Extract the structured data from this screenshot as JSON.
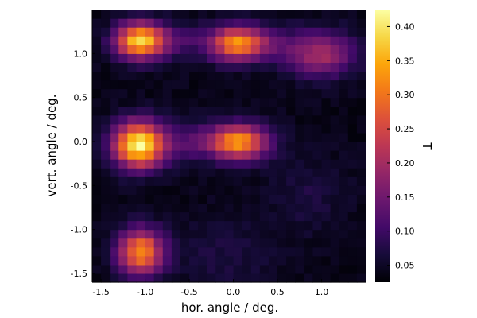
{
  "chart_data": {
    "type": "heatmap",
    "title": "",
    "xlabel": "hor. angle / deg.",
    "ylabel": "vert. angle / deg.",
    "colorbar_label": "T",
    "colormap": "inferno",
    "xlim": [
      -1.6,
      1.5
    ],
    "ylim": [
      -1.6,
      1.5
    ],
    "zlim": [
      0.025,
      0.425
    ],
    "x_ticks": [
      -1.5,
      -1.0,
      -0.5,
      0.0,
      0.5,
      1.0
    ],
    "x_tick_labels": [
      "-1.5",
      "-1.0",
      "-0.5",
      "0.0",
      "0.5",
      "1.0"
    ],
    "y_ticks": [
      -1.5,
      -1.0,
      -0.5,
      0.0,
      0.5,
      1.0
    ],
    "y_tick_labels": [
      "-1.5",
      "-1.0",
      "-0.5",
      "0.0",
      "0.5",
      "1.0"
    ],
    "colorbar_ticks": [
      0.05,
      0.1,
      0.15,
      0.2,
      0.25,
      0.3,
      0.35,
      0.4
    ],
    "colorbar_tick_labels": [
      "0.05",
      "0.10",
      "0.15",
      "0.20",
      "0.25",
      "0.30",
      "0.35",
      "0.40"
    ],
    "grid": false,
    "cells_x": 31,
    "cells_y": 31,
    "background": 0.04,
    "peaks": [
      {
        "x": -1.05,
        "y": 1.15,
        "amp": 0.35,
        "sx": 0.2,
        "sy": 0.14
      },
      {
        "x": 0.05,
        "y": 1.12,
        "amp": 0.29,
        "sx": 0.22,
        "sy": 0.14
      },
      {
        "x": 1.0,
        "y": 1.0,
        "amp": 0.16,
        "sx": 0.26,
        "sy": 0.18
      },
      {
        "x": -1.07,
        "y": -0.03,
        "amp": 0.38,
        "sx": 0.2,
        "sy": 0.18
      },
      {
        "x": 0.05,
        "y": 0.0,
        "amp": 0.3,
        "sx": 0.24,
        "sy": 0.14
      },
      {
        "x": -1.05,
        "y": -1.25,
        "amp": 0.28,
        "sx": 0.18,
        "sy": 0.18
      },
      {
        "x": -0.55,
        "y": 0.0,
        "amp": 0.06,
        "sx": 0.2,
        "sy": 0.18
      },
      {
        "x": -0.55,
        "y": 1.15,
        "amp": 0.05,
        "sx": 0.2,
        "sy": 0.14
      },
      {
        "x": 0.5,
        "y": 1.12,
        "amp": 0.05,
        "sx": 0.2,
        "sy": 0.14
      },
      {
        "x": -0.1,
        "y": -1.3,
        "amp": 0.03,
        "sx": 0.4,
        "sy": 0.3
      },
      {
        "x": 0.85,
        "y": -0.6,
        "amp": 0.03,
        "sx": 0.3,
        "sy": 0.3
      }
    ]
  }
}
